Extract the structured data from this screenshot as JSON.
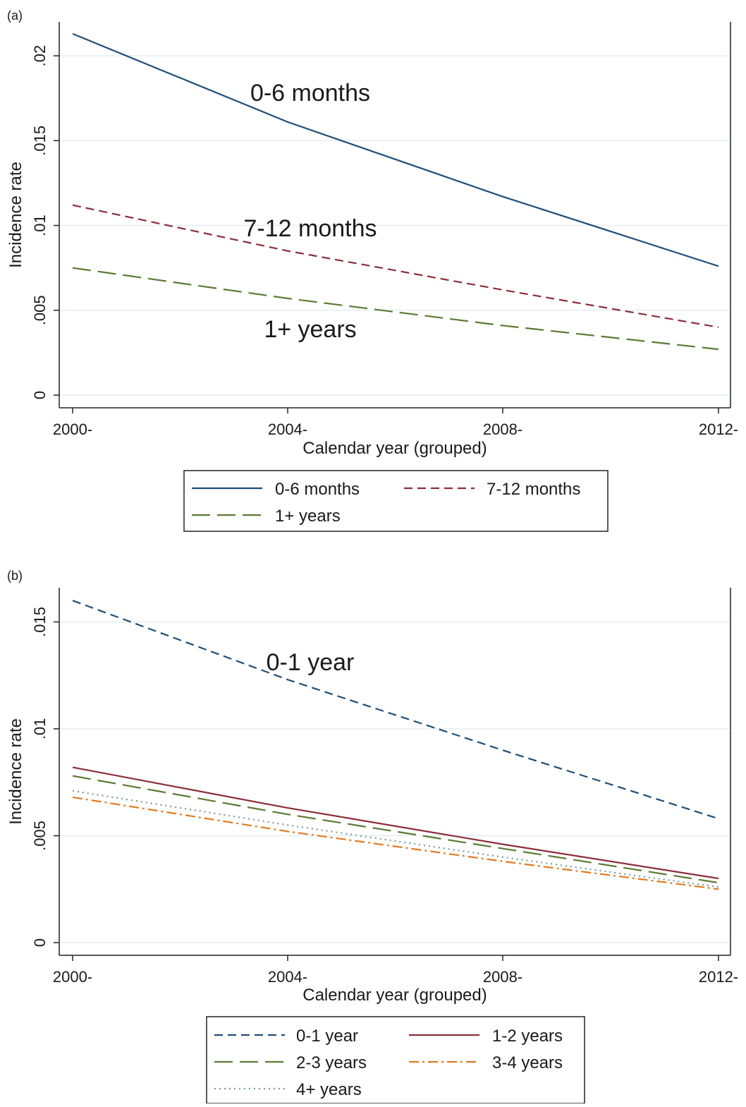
{
  "chart_data": [
    {
      "type": "line",
      "panel_label": "(a)",
      "xlabel": "Calendar year (grouped)",
      "ylabel": "Incidence rate",
      "categories": [
        "2000-",
        "2004-",
        "2008-",
        "2012-"
      ],
      "ylim": [
        0,
        0.022
      ],
      "yticks": [
        0,
        0.005,
        0.01,
        0.015,
        0.02
      ],
      "ytick_labels": [
        "0",
        ".005",
        ".01",
        ".015",
        ".02"
      ],
      "grid": true,
      "legend_position": "bottom",
      "series": [
        {
          "name": "0-6 months",
          "values": [
            0.0213,
            0.0161,
            0.0117,
            0.0076
          ],
          "color": "#1f4e79",
          "dash": "solid"
        },
        {
          "name": "7-12 months",
          "values": [
            0.0112,
            0.0085,
            0.0062,
            0.004
          ],
          "color": "#8b2e3a",
          "dash": "dash"
        },
        {
          "name": "1+ years",
          "values": [
            0.0075,
            0.0057,
            0.0041,
            0.0027
          ],
          "color": "#5a7a33",
          "dash": "longdash"
        }
      ],
      "annotations": [
        {
          "text": "0-6 months",
          "x": 1.1,
          "y": 0.018
        },
        {
          "text": "7-12 months",
          "x": 1.1,
          "y": 0.0099
        },
        {
          "text": "1+ years",
          "x": 1.1,
          "y": 0.0039
        }
      ]
    },
    {
      "type": "line",
      "panel_label": "(b)",
      "xlabel": "Calendar year (grouped)",
      "ylabel": "Incidence rate",
      "categories": [
        "2000-",
        "2004-",
        "2008-",
        "2012-"
      ],
      "ylim": [
        0,
        0.0166
      ],
      "yticks": [
        0,
        0.005,
        0.01,
        0.015
      ],
      "ytick_labels": [
        "0",
        ".005",
        ".01",
        ".015"
      ],
      "grid": true,
      "legend_position": "bottom",
      "series": [
        {
          "name": "0-1 year",
          "values": [
            0.016,
            0.0123,
            0.009,
            0.0058
          ],
          "color": "#1f4e79",
          "dash": "dash"
        },
        {
          "name": "1-2 years",
          "values": [
            0.0082,
            0.0063,
            0.0046,
            0.003
          ],
          "color": "#8b2e3a",
          "dash": "solid"
        },
        {
          "name": "2-3 years",
          "values": [
            0.0078,
            0.006,
            0.0044,
            0.0028
          ],
          "color": "#5a7a33",
          "dash": "longdash"
        },
        {
          "name": "3-4 years",
          "values": [
            0.0068,
            0.0052,
            0.0038,
            0.0025
          ],
          "color": "#e07b22",
          "dash": "dashdot"
        },
        {
          "name": "4+ years",
          "values": [
            0.0071,
            0.0055,
            0.004,
            0.0026
          ],
          "color": "#7a9a9a",
          "dash": "dot"
        }
      ],
      "annotations": [
        {
          "text": "0-1 year",
          "x": 1.1,
          "y": 0.0134
        }
      ]
    }
  ]
}
